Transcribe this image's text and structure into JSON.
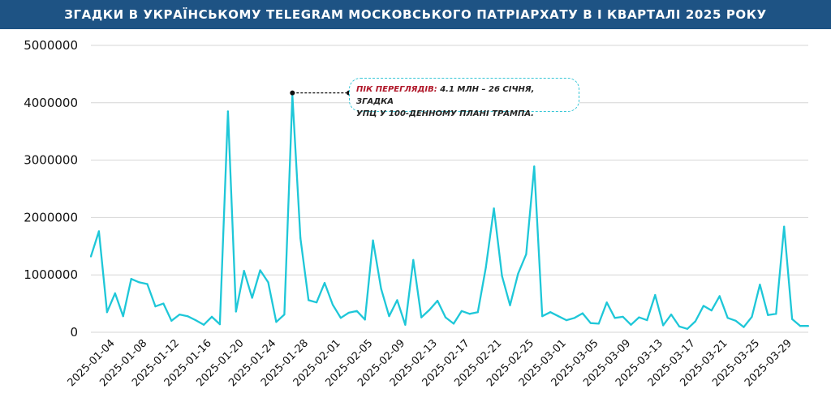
{
  "header": {
    "title": "ЗГАДКИ В УКРАЇНСЬКОМУ TELEGRAM МОСКОВСЬКОГО ПАТРІАРХАТУ В І КВАРТАЛІ  2025 РОКУ"
  },
  "annotation": {
    "key": "ПІК ПЕРЕГЛЯДІВ:",
    "line1": " 4.1 МЛН – 26 СІЧНЯ, ЗГАДКА",
    "line2": "УПЦ У 100-ДЕННОМУ ПЛАНІ ТРАМПА.",
    "x": "2025-01-26",
    "y": 4130000
  },
  "colors": {
    "header_bg": "#1e5384",
    "line": "#1ec7d8",
    "annotation_key": "#b0182a"
  },
  "chart_data": {
    "type": "line",
    "title": "ЗГАДКИ В УКРАЇНСЬКОМУ TELEGRAM МОСКОВСЬКОГО ПАТРІАРХАТУ В І КВАРТАЛІ  2025 РОКУ",
    "xlabel": "",
    "ylabel": "",
    "ylim": [
      0,
      5000000
    ],
    "yticks": [
      "0",
      "1000000",
      "2000000",
      "3000000",
      "4000000",
      "5000000"
    ],
    "xticks": [
      "2025-01-04",
      "2025-01-08",
      "2025-01-12",
      "2025-01-16",
      "2025-01-20",
      "2025-01-24",
      "2025-01-28",
      "2025-02-01",
      "2025-02-05",
      "2025-02-09",
      "2025-02-13",
      "2025-02-17",
      "2025-02-21",
      "2025-02-25",
      "2025-03-01",
      "2025-03-05",
      "2025-03-09",
      "2025-03-13",
      "2025-03-17",
      "2025-03-21",
      "2025-03-25",
      "2025-03-29"
    ],
    "grid": true,
    "x_start": "2025-01-01",
    "values": [
      1320000,
      1760000,
      350000,
      680000,
      280000,
      930000,
      870000,
      840000,
      450000,
      500000,
      200000,
      310000,
      280000,
      210000,
      130000,
      270000,
      140000,
      3850000,
      360000,
      1070000,
      600000,
      1080000,
      870000,
      180000,
      310000,
      4130000,
      1640000,
      560000,
      520000,
      860000,
      480000,
      250000,
      340000,
      370000,
      220000,
      1600000,
      760000,
      280000,
      560000,
      130000,
      1260000,
      260000,
      390000,
      550000,
      260000,
      150000,
      370000,
      320000,
      350000,
      1130000,
      2160000,
      980000,
      470000,
      1020000,
      1360000,
      2890000,
      280000,
      350000,
      280000,
      210000,
      250000,
      330000,
      160000,
      150000,
      520000,
      250000,
      270000,
      130000,
      260000,
      210000,
      650000,
      120000,
      310000,
      100000,
      60000,
      190000,
      460000,
      380000,
      630000,
      250000,
      200000,
      90000,
      270000,
      830000,
      300000,
      320000,
      1840000,
      230000,
      110000,
      110000
    ]
  }
}
